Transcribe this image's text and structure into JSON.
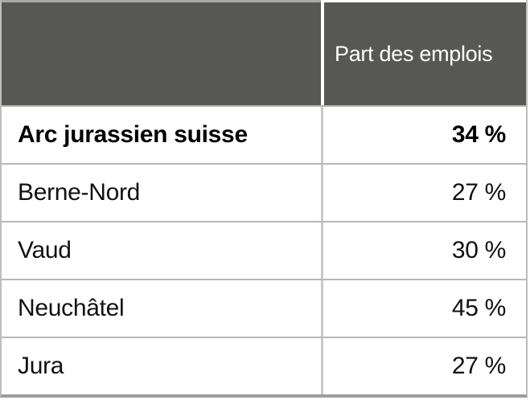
{
  "table": {
    "header": {
      "label_col": "",
      "value_col": "Part des emplois"
    },
    "rows": [
      {
        "label": "Arc jurassien suisse",
        "value": "34 %",
        "bold": true
      },
      {
        "label": "Berne-Nord",
        "value": "27 %",
        "bold": false
      },
      {
        "label": "Vaud",
        "value": "30 %",
        "bold": false
      },
      {
        "label": "Neuchâtel",
        "value": "45 %",
        "bold": false
      },
      {
        "label": "Jura",
        "value": "27 %",
        "bold": false
      }
    ],
    "colors": {
      "header_bg": "#575756",
      "header_text": "#ffffff",
      "row_separator": "#b7b7b7",
      "bottom_border": "#9d9d9c",
      "body_text": "#111111"
    }
  },
  "chart_data": {
    "type": "table",
    "title": "",
    "columns": [
      "",
      "Part des emplois"
    ],
    "categories": [
      "Arc jurassien suisse",
      "Berne-Nord",
      "Vaud",
      "Neuchâtel",
      "Jura"
    ],
    "values": [
      34,
      27,
      30,
      45,
      27
    ],
    "value_unit": "%",
    "emphasized_row": "Arc jurassien suisse"
  }
}
